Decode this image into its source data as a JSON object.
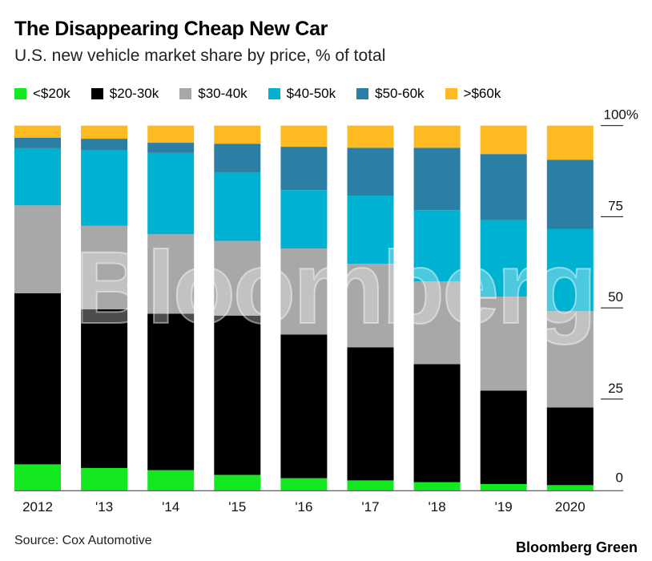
{
  "title": "The Disappearing Cheap New Car",
  "subtitle": "U.S. new vehicle market share by price, % of total",
  "source": "Source: Cox Automotive",
  "brand": "Bloomberg Green",
  "watermark": "Bloomberg",
  "chart_data": {
    "type": "bar",
    "stacked": true,
    "categories": [
      "2012",
      "'13",
      "'14",
      "'15",
      "'16",
      "'17",
      "'18",
      "'19",
      "2020"
    ],
    "series": [
      {
        "name": "<$20k",
        "color": "#14e820",
        "values": [
          7.1,
          6.1,
          5.5,
          4.2,
          3.3,
          2.7,
          2.2,
          1.7,
          1.4
        ]
      },
      {
        "name": "$20-30k",
        "color": "#000000",
        "values": [
          46.9,
          43.5,
          42.9,
          43.7,
          39.4,
          36.5,
          32.4,
          25.6,
          21.3
        ]
      },
      {
        "name": "$30-40k",
        "color": "#a8a8a8",
        "values": [
          24.1,
          22.9,
          21.8,
          20.5,
          23.6,
          22.9,
          22.7,
          25.8,
          26.4
        ]
      },
      {
        "name": "$40-50k",
        "color": "#00b2d2",
        "values": [
          15.7,
          20.7,
          22.3,
          18.8,
          16.0,
          18.7,
          19.5,
          21.0,
          22.5
        ]
      },
      {
        "name": "$50-60k",
        "color": "#2b7fa5",
        "values": [
          2.9,
          3.2,
          2.8,
          7.8,
          11.9,
          13.1,
          17.1,
          18.1,
          19.0
        ]
      },
      {
        "name": ">$60k",
        "color": "#fdba21",
        "values": [
          3.3,
          3.6,
          4.7,
          5.0,
          5.8,
          6.1,
          6.1,
          7.8,
          9.4
        ]
      }
    ],
    "ylim": [
      0,
      100
    ],
    "yticks": [
      0,
      25,
      50,
      75,
      100
    ],
    "ytick_labels": [
      "0",
      "25",
      "50",
      "75",
      "100%"
    ],
    "yaxis_position": "right",
    "grid": false,
    "legend": "top"
  }
}
